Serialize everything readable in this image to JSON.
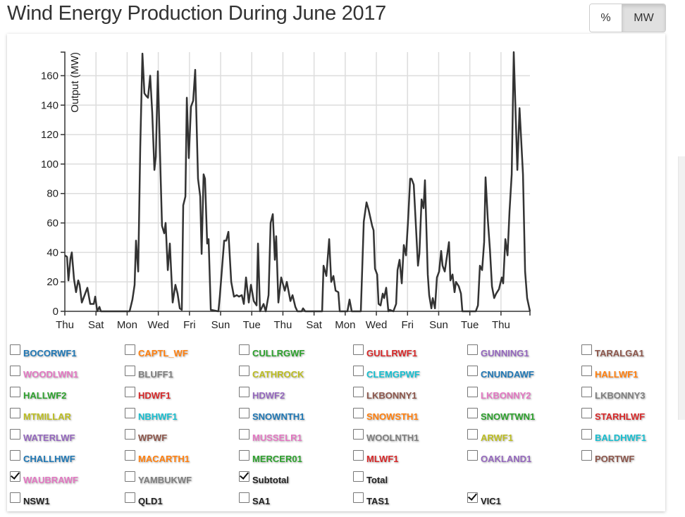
{
  "title": "Wind Energy Production During June 2017",
  "units_toggle": {
    "percent_label": "%",
    "mw_label": "MW",
    "selected": "MW"
  },
  "palette": [
    "#1f77b4",
    "#ff7f0e",
    "#2ca02c",
    "#d62728",
    "#9467bd",
    "#8c564b",
    "#e377c2",
    "#7f7f7f",
    "#bcbd22",
    "#17becf"
  ],
  "legend": {
    "stations": [
      {
        "label": "BOCORWF1",
        "checked": false
      },
      {
        "label": "CAPTL_WF",
        "checked": false
      },
      {
        "label": "CULLRGWF",
        "checked": false
      },
      {
        "label": "GULLRWF1",
        "checked": false
      },
      {
        "label": "GUNNING1",
        "checked": false
      },
      {
        "label": "TARALGA1",
        "checked": false
      },
      {
        "label": "WOODLWN1",
        "checked": false
      },
      {
        "label": "BLUFF1",
        "checked": false
      },
      {
        "label": "CATHROCK",
        "checked": false
      },
      {
        "label": "CLEMGPWF",
        "checked": false
      },
      {
        "label": "CNUNDAWF",
        "checked": false
      },
      {
        "label": "HALLWF1",
        "checked": false
      },
      {
        "label": "HALLWF2",
        "checked": false
      },
      {
        "label": "HDWF1",
        "checked": false
      },
      {
        "label": "HDWF2",
        "checked": false
      },
      {
        "label": "LKBONNY1",
        "checked": false
      },
      {
        "label": "LKBONNY2",
        "checked": false
      },
      {
        "label": "LKBONNY3",
        "checked": false
      },
      {
        "label": "MTMILLAR",
        "checked": false
      },
      {
        "label": "NBHWF1",
        "checked": false
      },
      {
        "label": "SNOWNTH1",
        "checked": false
      },
      {
        "label": "SNOWSTH1",
        "checked": false
      },
      {
        "label": "SNOWTWN1",
        "checked": false
      },
      {
        "label": "STARHLWF",
        "checked": false
      },
      {
        "label": "WATERLWF",
        "checked": false
      },
      {
        "label": "WPWF",
        "checked": false
      },
      {
        "label": "MUSSELR1",
        "checked": false
      },
      {
        "label": "WOOLNTH1",
        "checked": false
      },
      {
        "label": "ARWF1",
        "checked": false
      },
      {
        "label": "BALDHWF1",
        "checked": false
      },
      {
        "label": "CHALLHWF",
        "checked": false
      },
      {
        "label": "MACARTH1",
        "checked": false
      },
      {
        "label": "MERCER01",
        "checked": false
      },
      {
        "label": "MLWF1",
        "checked": false
      },
      {
        "label": "OAKLAND1",
        "checked": false
      },
      {
        "label": "PORTWF",
        "checked": false
      },
      {
        "label": "WAUBRAWF",
        "checked": true
      },
      {
        "label": "YAMBUKWF",
        "checked": false
      }
    ],
    "aggregates": [
      {
        "label": "Subtotal",
        "checked": true
      },
      {
        "label": "Total",
        "checked": false
      }
    ],
    "regions": [
      {
        "label": "NSW1",
        "checked": false
      },
      {
        "label": "QLD1",
        "checked": false
      },
      {
        "label": "SA1",
        "checked": false
      },
      {
        "label": "TAS1",
        "checked": false
      },
      {
        "label": "VIC1",
        "checked": true
      }
    ]
  },
  "chart_data": {
    "type": "line",
    "title": "Wind Energy Production During June 2017",
    "xlabel": "",
    "ylabel": "Output (MW)",
    "x_unit": "days since Thu 1 June 2017",
    "xlim": [
      0,
      29.86
    ],
    "ylim": [
      0,
      176
    ],
    "grid": true,
    "x_ticks": [
      {
        "v": 0,
        "label": "Thu"
      },
      {
        "v": 2,
        "label": "Sat"
      },
      {
        "v": 4,
        "label": "Mon"
      },
      {
        "v": 6,
        "label": "Wed"
      },
      {
        "v": 8,
        "label": "Fri"
      },
      {
        "v": 10,
        "label": "Sun"
      },
      {
        "v": 12,
        "label": "Tue"
      },
      {
        "v": 14,
        "label": "Thu"
      },
      {
        "v": 16,
        "label": "Sat"
      },
      {
        "v": 18,
        "label": "Mon"
      },
      {
        "v": 20,
        "label": "Wed"
      },
      {
        "v": 22,
        "label": "Fri"
      },
      {
        "v": 24,
        "label": "Sun"
      },
      {
        "v": 26,
        "label": "Tue"
      },
      {
        "v": 28,
        "label": "Thu"
      }
    ],
    "y_ticks": [
      0,
      20,
      40,
      60,
      80,
      100,
      120,
      140,
      160
    ],
    "series": [
      {
        "name": "Subtotal",
        "color": "#333333",
        "points": [
          [
            0,
            38
          ],
          [
            0.14,
            37
          ],
          [
            0.23,
            21
          ],
          [
            0.36,
            36
          ],
          [
            0.45,
            40
          ],
          [
            0.59,
            22
          ],
          [
            0.72,
            13
          ],
          [
            0.86,
            21
          ],
          [
            0.95,
            18
          ],
          [
            1.09,
            6
          ],
          [
            1.45,
            16
          ],
          [
            1.63,
            5
          ],
          [
            1.86,
            5
          ],
          [
            1.95,
            10
          ],
          [
            2.08,
            0
          ],
          [
            2.22,
            3
          ],
          [
            2.31,
            0
          ],
          [
            4.16,
            0
          ],
          [
            4.34,
            8
          ],
          [
            4.48,
            18
          ],
          [
            4.57,
            48
          ],
          [
            4.71,
            27
          ],
          [
            4.84,
            111
          ],
          [
            4.98,
            175
          ],
          [
            5.11,
            148
          ],
          [
            5.25,
            146
          ],
          [
            5.34,
            145
          ],
          [
            5.48,
            160
          ],
          [
            5.61,
            135
          ],
          [
            5.75,
            96
          ],
          [
            5.84,
            105
          ],
          [
            5.97,
            163
          ],
          [
            6.15,
            92
          ],
          [
            6.24,
            58
          ],
          [
            6.38,
            53
          ],
          [
            6.47,
            60
          ],
          [
            6.61,
            28
          ],
          [
            6.74,
            46
          ],
          [
            6.92,
            6
          ],
          [
            7.1,
            18
          ],
          [
            7.24,
            12
          ],
          [
            7.38,
            2
          ],
          [
            7.51,
            1
          ],
          [
            7.6,
            72
          ],
          [
            7.74,
            78
          ],
          [
            7.83,
            145
          ],
          [
            7.96,
            104
          ],
          [
            8.1,
            139
          ],
          [
            8.24,
            143
          ],
          [
            8.37,
            164
          ],
          [
            8.55,
            90
          ],
          [
            8.69,
            78
          ],
          [
            8.78,
            39
          ],
          [
            8.91,
            93
          ],
          [
            9.0,
            90
          ],
          [
            9.14,
            46
          ],
          [
            9.23,
            49
          ],
          [
            9.37,
            1
          ],
          [
            9.86,
            0
          ],
          [
            9.95,
            10
          ],
          [
            10.23,
            48
          ],
          [
            10.36,
            48
          ],
          [
            10.5,
            54
          ],
          [
            10.68,
            20
          ],
          [
            10.86,
            10
          ],
          [
            11.04,
            11
          ],
          [
            11.18,
            10
          ],
          [
            11.36,
            11
          ],
          [
            11.49,
            5
          ],
          [
            11.63,
            23
          ],
          [
            11.81,
            6
          ],
          [
            11.95,
            18
          ],
          [
            12.13,
            7
          ],
          [
            12.31,
            4
          ],
          [
            12.4,
            46
          ],
          [
            12.53,
            0
          ],
          [
            12.76,
            5
          ],
          [
            12.9,
            0
          ],
          [
            13.08,
            11
          ],
          [
            13.21,
            60
          ],
          [
            13.35,
            66
          ],
          [
            13.48,
            35
          ],
          [
            13.57,
            51
          ],
          [
            13.71,
            6
          ],
          [
            13.89,
            23
          ],
          [
            14.12,
            14
          ],
          [
            14.25,
            20
          ],
          [
            14.48,
            7
          ],
          [
            14.62,
            11
          ],
          [
            14.8,
            3
          ],
          [
            14.93,
            0
          ],
          [
            15.2,
            0
          ],
          [
            15.29,
            2
          ],
          [
            15.43,
            0
          ],
          [
            16.52,
            0
          ],
          [
            16.61,
            31
          ],
          [
            16.79,
            24
          ],
          [
            16.97,
            49
          ],
          [
            17.1,
            20
          ],
          [
            17.24,
            24
          ],
          [
            17.38,
            14
          ],
          [
            17.56,
            13
          ],
          [
            17.65,
            0
          ],
          [
            18.14,
            0
          ],
          [
            18.28,
            8
          ],
          [
            18.42,
            0
          ],
          [
            19.0,
            0
          ],
          [
            19.19,
            61
          ],
          [
            19.37,
            74
          ],
          [
            19.5,
            69
          ],
          [
            19.73,
            58
          ],
          [
            19.82,
            55
          ],
          [
            19.91,
            29
          ],
          [
            20.05,
            25
          ],
          [
            20.14,
            5
          ],
          [
            20.27,
            4
          ],
          [
            20.41,
            12
          ],
          [
            20.5,
            9
          ],
          [
            20.63,
            16
          ],
          [
            20.77,
            0
          ],
          [
            20.86,
            1
          ],
          [
            21.09,
            0
          ],
          [
            21.27,
            5
          ],
          [
            21.36,
            28
          ],
          [
            21.49,
            35
          ],
          [
            21.63,
            19
          ],
          [
            21.76,
            45
          ],
          [
            21.9,
            38
          ],
          [
            22.04,
            63
          ],
          [
            22.17,
            90
          ],
          [
            22.26,
            90
          ],
          [
            22.4,
            86
          ],
          [
            22.67,
            31
          ],
          [
            22.76,
            39
          ],
          [
            22.9,
            76
          ],
          [
            23.03,
            70
          ],
          [
            23.12,
            89
          ],
          [
            23.3,
            25
          ],
          [
            23.39,
            11
          ],
          [
            23.53,
            2
          ],
          [
            23.62,
            9
          ],
          [
            23.76,
            2
          ],
          [
            23.89,
            23
          ],
          [
            24.03,
            27
          ],
          [
            24.16,
            41
          ],
          [
            24.25,
            31
          ],
          [
            24.39,
            27
          ],
          [
            24.66,
            47
          ],
          [
            24.75,
            21
          ],
          [
            24.89,
            25
          ],
          [
            25.02,
            13
          ],
          [
            25.11,
            20
          ],
          [
            25.29,
            17
          ],
          [
            25.43,
            12
          ],
          [
            25.52,
            0
          ],
          [
            26.38,
            0
          ],
          [
            26.52,
            4
          ],
          [
            26.65,
            31
          ],
          [
            26.79,
            28
          ],
          [
            26.92,
            47
          ],
          [
            27.01,
            91
          ],
          [
            27.15,
            63
          ],
          [
            27.29,
            42
          ],
          [
            27.42,
            17
          ],
          [
            27.56,
            9
          ],
          [
            27.69,
            12
          ],
          [
            27.87,
            15
          ],
          [
            28.05,
            23
          ],
          [
            28.14,
            19
          ],
          [
            28.28,
            49
          ],
          [
            28.42,
            38
          ],
          [
            28.55,
            68
          ],
          [
            28.69,
            93
          ],
          [
            28.82,
            176
          ],
          [
            29.05,
            96
          ],
          [
            29.19,
            138
          ],
          [
            29.41,
            93
          ],
          [
            29.55,
            27
          ],
          [
            29.68,
            9
          ],
          [
            29.86,
            0
          ]
        ]
      }
    ]
  }
}
